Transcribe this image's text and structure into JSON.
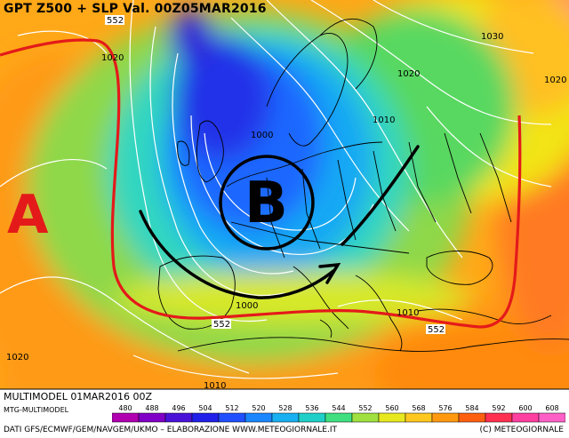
{
  "title": "GPT Z500 + SLP Val. 00Z05MAR2016",
  "run_label": "MULTIMODEL 01MAR2016 00Z",
  "model_label": "MTG-MULTIMODEL",
  "credits": "DATI GFS/ECMWF/GEM/NAVGEM/UKMO – ELABORAZIONE WWW.METEOGIORNALE.IT",
  "copyright": "(C) METEOGIORNALE",
  "highs": [
    {
      "label": "A"
    }
  ],
  "lows": [
    {
      "label": "B"
    }
  ],
  "pressure_labels": [
    {
      "value": "1020"
    },
    {
      "value": "1030"
    },
    {
      "value": "1020"
    },
    {
      "value": "1010"
    },
    {
      "value": "1000"
    },
    {
      "value": "1000"
    },
    {
      "value": "1010"
    },
    {
      "value": "1020"
    },
    {
      "value": "1010"
    },
    {
      "value": "1020"
    }
  ],
  "geopotential_labels": [
    {
      "value": "552"
    },
    {
      "value": "552"
    },
    {
      "value": "552"
    }
  ],
  "colorbar": {
    "values": [
      "480",
      "488",
      "496",
      "504",
      "512",
      "520",
      "528",
      "536",
      "544",
      "552",
      "560",
      "568",
      "576",
      "584",
      "592",
      "600",
      "608"
    ],
    "colors": [
      "#b000b0",
      "#8000c8",
      "#4a12d8",
      "#2020e8",
      "#2050ff",
      "#1a86ff",
      "#18b0f0",
      "#20d0c8",
      "#40e080",
      "#a0e040",
      "#e8e820",
      "#ffc820",
      "#ff9a10",
      "#ff6010",
      "#ff3050",
      "#ff40a0",
      "#ff60c8"
    ]
  }
}
